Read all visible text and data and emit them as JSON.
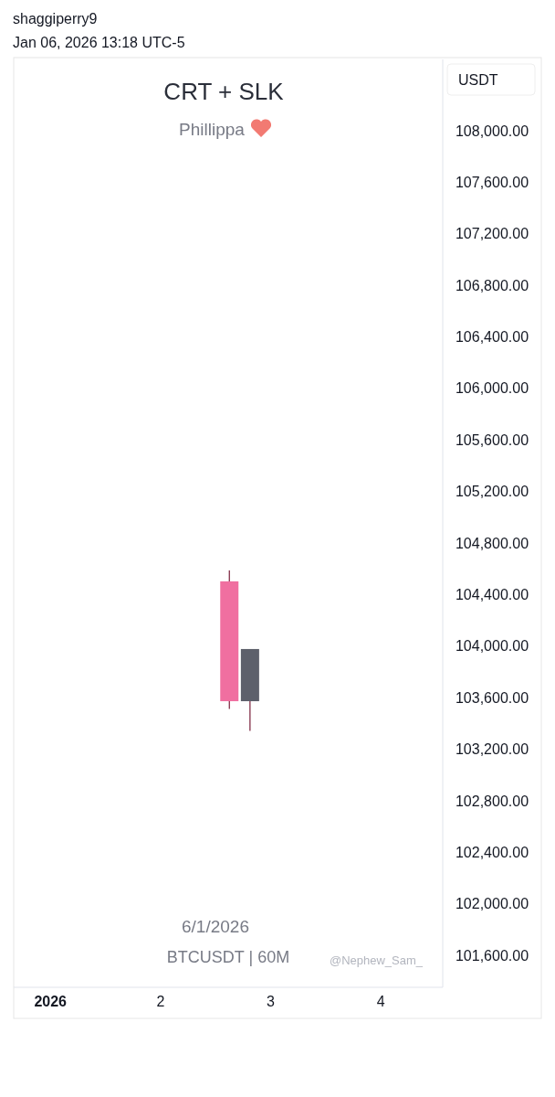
{
  "chart_data": {
    "type": "candlestick",
    "title": "CRT + SLK",
    "subtitle": "Phillippa",
    "ylabel": "USDT",
    "annotations": [
      "shaggiperry9",
      "Jan 06, 2026 13:18 UTC-5",
      "6/1/2026",
      "BTCUSDT | 60M",
      "@Nephew_Sam_"
    ],
    "x": [
      "2026-01-02T15:00",
      "2026-01-02T19:30"
    ],
    "ohlc": [
      [
        104500,
        104585,
        103510,
        103570
      ],
      [
        103570,
        103975,
        103340,
        103975
      ]
    ],
    "colors": [
      "#f06fa0",
      "#5d606b"
    ],
    "xlim": [
      "2025-12-31T16:00",
      "2026-01-04T13:30"
    ],
    "xticks": [
      {
        "value": "2026-01-01",
        "label": "2026"
      },
      {
        "value": "2026-01-02",
        "label": "2"
      },
      {
        "value": "2026-01-03",
        "label": "3"
      },
      {
        "value": "2026-01-04",
        "label": "4"
      }
    ],
    "ylim": [
      101350,
      108550
    ],
    "yticks": [
      {
        "value": 108000,
        "label": "108,000.00"
      },
      {
        "value": 107600,
        "label": "107,600.00"
      },
      {
        "value": 107200,
        "label": "107,200.00"
      },
      {
        "value": 106800,
        "label": "106,800.00"
      },
      {
        "value": 106400,
        "label": "106,400.00"
      },
      {
        "value": 106000,
        "label": "106,000.00"
      },
      {
        "value": 105600,
        "label": "105,600.00"
      },
      {
        "value": 105200,
        "label": "105,200.00"
      },
      {
        "value": 104800,
        "label": "104,800.00"
      },
      {
        "value": 104400,
        "label": "104,400.00"
      },
      {
        "value": 104000,
        "label": "104,000.00"
      },
      {
        "value": 103600,
        "label": "103,600.00"
      },
      {
        "value": 103200,
        "label": "103,200.00"
      },
      {
        "value": 102800,
        "label": "102,800.00"
      },
      {
        "value": 102400,
        "label": "102,400.00"
      },
      {
        "value": 102000,
        "label": "102,000.00"
      },
      {
        "value": 101600,
        "label": "101,600.00"
      }
    ]
  }
}
